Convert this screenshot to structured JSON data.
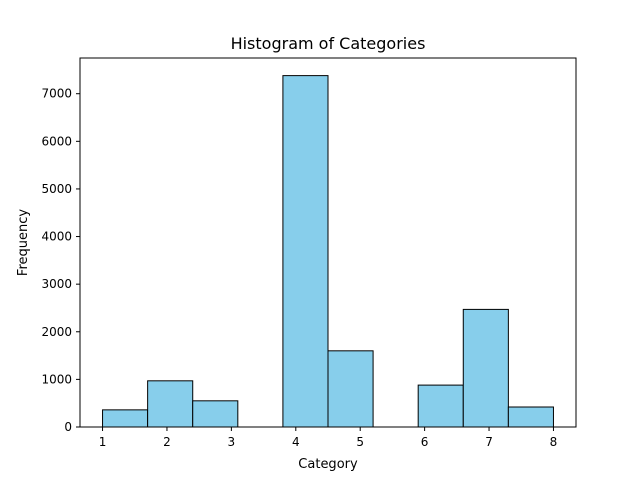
{
  "chart_data": {
    "type": "bar",
    "title": "Histogram of Categories",
    "xlabel": "Category",
    "ylabel": "Frequency",
    "xlim": [
      0.65,
      8.35
    ],
    "ylim": [
      0,
      7750
    ],
    "xticks": [
      1,
      2,
      3,
      4,
      5,
      6,
      7,
      8
    ],
    "yticks": [
      0,
      1000,
      2000,
      3000,
      4000,
      5000,
      6000,
      7000
    ],
    "grid": false,
    "bar_color": "#87ceeb",
    "edge_color": "#000000",
    "bins": [
      {
        "start": 1.0,
        "end": 1.7,
        "value": 360
      },
      {
        "start": 1.7,
        "end": 2.4,
        "value": 970
      },
      {
        "start": 2.4,
        "end": 3.1,
        "value": 550
      },
      {
        "start": 3.1,
        "end": 3.8,
        "value": 0
      },
      {
        "start": 3.8,
        "end": 4.5,
        "value": 7380
      },
      {
        "start": 4.5,
        "end": 5.2,
        "value": 1600
      },
      {
        "start": 5.2,
        "end": 5.9,
        "value": 0
      },
      {
        "start": 5.9,
        "end": 6.6,
        "value": 880
      },
      {
        "start": 6.6,
        "end": 7.3,
        "value": 2470
      },
      {
        "start": 7.3,
        "end": 8.0,
        "value": 420
      }
    ]
  }
}
